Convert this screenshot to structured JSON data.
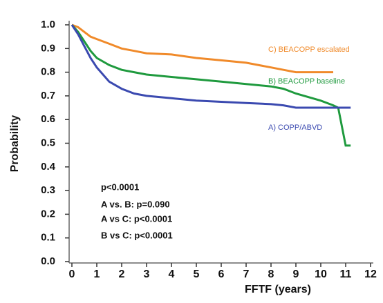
{
  "chart_data": {
    "type": "line",
    "x_label": "FFTF (years)",
    "y_label": "Probability",
    "x": [
      0,
      0.25,
      0.5,
      0.75,
      1,
      1.5,
      2,
      2.5,
      3,
      4,
      5,
      6,
      7,
      8,
      8.5,
      9,
      10,
      10.5,
      10.7,
      11,
      11.2
    ],
    "series": [
      {
        "name": "C) BEACOPP escalated",
        "color": "#f08a2a",
        "values": [
          1.0,
          0.99,
          0.97,
          0.95,
          0.94,
          0.92,
          0.9,
          0.89,
          0.88,
          0.875,
          0.86,
          0.85,
          0.84,
          0.82,
          0.81,
          0.8,
          0.8,
          0.8,
          null,
          null,
          null
        ]
      },
      {
        "name": "B) BEACOPP baseline",
        "color": "#1f9a3e",
        "values": [
          1.0,
          0.97,
          0.93,
          0.89,
          0.86,
          0.83,
          0.81,
          0.8,
          0.79,
          0.78,
          0.77,
          0.76,
          0.75,
          0.74,
          0.73,
          0.71,
          0.68,
          0.66,
          0.65,
          0.49,
          0.49
        ]
      },
      {
        "name": "A) COPP/ABVD",
        "color": "#3b4ab0",
        "values": [
          1.0,
          0.96,
          0.91,
          0.86,
          0.82,
          0.76,
          0.73,
          0.71,
          0.7,
          0.69,
          0.68,
          0.675,
          0.67,
          0.665,
          0.66,
          0.65,
          0.65,
          0.65,
          0.65,
          0.65,
          0.65
        ]
      }
    ],
    "annotations": [
      "p<0.0001",
      "A vs. B: p=0.090",
      "A vs C: p<0.0001",
      "B vs C: p<0.0001"
    ],
    "xlim": [
      0,
      12
    ],
    "xticks": [
      0,
      1,
      2,
      3,
      4,
      5,
      6,
      7,
      8,
      9,
      10,
      11,
      12
    ],
    "ylim": [
      0,
      1
    ],
    "yticks": [
      {
        "value": 0,
        "label": "0.0"
      },
      {
        "value": 0.1,
        "label": "0.1"
      },
      {
        "value": 0.2,
        "label": "0.2"
      },
      {
        "value": 0.3,
        "label": "0.3"
      },
      {
        "value": 0.4,
        "label": "0.4"
      },
      {
        "value": 0.5,
        "label": "0.5"
      },
      {
        "value": 0.6,
        "label": "0.6"
      },
      {
        "value": 0.7,
        "label": "0.7"
      },
      {
        "value": 0.8,
        "label": "0.8"
      },
      {
        "value": 0.9,
        "label": "0.9"
      },
      {
        "value": 1,
        "label": "1.0"
      }
    ],
    "grid": false
  }
}
